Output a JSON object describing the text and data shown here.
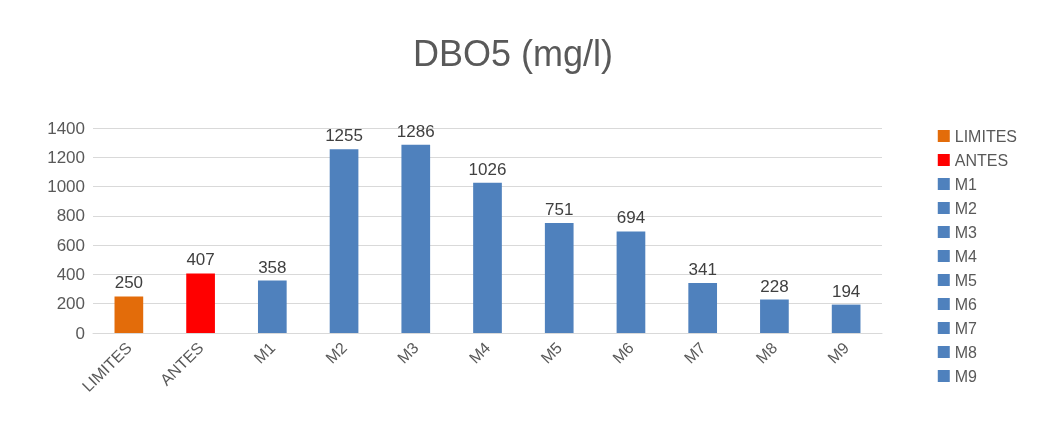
{
  "chart_data": {
    "type": "bar",
    "title": "DBO5 (mg/l)",
    "categories": [
      "LIMITES",
      "ANTES",
      "M1",
      "M2",
      "M3",
      "M4",
      "M5",
      "M6",
      "M7",
      "M8",
      "M9"
    ],
    "series": [
      {
        "name": "LIMITES",
        "color": "#e36c0a",
        "values": [
          250,
          null,
          null,
          null,
          null,
          null,
          null,
          null,
          null,
          null,
          null
        ]
      },
      {
        "name": "ANTES",
        "color": "#ff0000",
        "values": [
          null,
          407,
          null,
          null,
          null,
          null,
          null,
          null,
          null,
          null,
          null
        ]
      },
      {
        "name": "M1",
        "color": "#4f81bd",
        "values": [
          null,
          null,
          358,
          null,
          null,
          null,
          null,
          null,
          null,
          null,
          null
        ]
      },
      {
        "name": "M2",
        "color": "#4f81bd",
        "values": [
          null,
          null,
          null,
          1255,
          null,
          null,
          null,
          null,
          null,
          null,
          null
        ]
      },
      {
        "name": "M3",
        "color": "#4f81bd",
        "values": [
          null,
          null,
          null,
          null,
          1286,
          null,
          null,
          null,
          null,
          null,
          null
        ]
      },
      {
        "name": "M4",
        "color": "#4f81bd",
        "values": [
          null,
          null,
          null,
          null,
          null,
          1026,
          null,
          null,
          null,
          null,
          null
        ]
      },
      {
        "name": "M5",
        "color": "#4f81bd",
        "values": [
          null,
          null,
          null,
          null,
          null,
          null,
          751,
          null,
          null,
          null,
          null
        ]
      },
      {
        "name": "M6",
        "color": "#4f81bd",
        "values": [
          null,
          null,
          null,
          null,
          null,
          null,
          null,
          694,
          null,
          null,
          null
        ]
      },
      {
        "name": "M7",
        "color": "#4f81bd",
        "values": [
          null,
          null,
          null,
          null,
          null,
          null,
          null,
          null,
          341,
          null,
          null
        ]
      },
      {
        "name": "M8",
        "color": "#4f81bd",
        "values": [
          null,
          null,
          null,
          null,
          null,
          null,
          null,
          null,
          null,
          228,
          null
        ]
      },
      {
        "name": "M9",
        "color": "#4f81bd",
        "values": [
          null,
          null,
          null,
          null,
          null,
          null,
          null,
          null,
          null,
          null,
          194
        ]
      }
    ],
    "stacked": true,
    "ylim": [
      0,
      1400
    ],
    "yticks": [
      0,
      200,
      400,
      600,
      800,
      1000,
      1200,
      1400
    ],
    "grid": true,
    "legend": "right",
    "data_labels": true
  }
}
